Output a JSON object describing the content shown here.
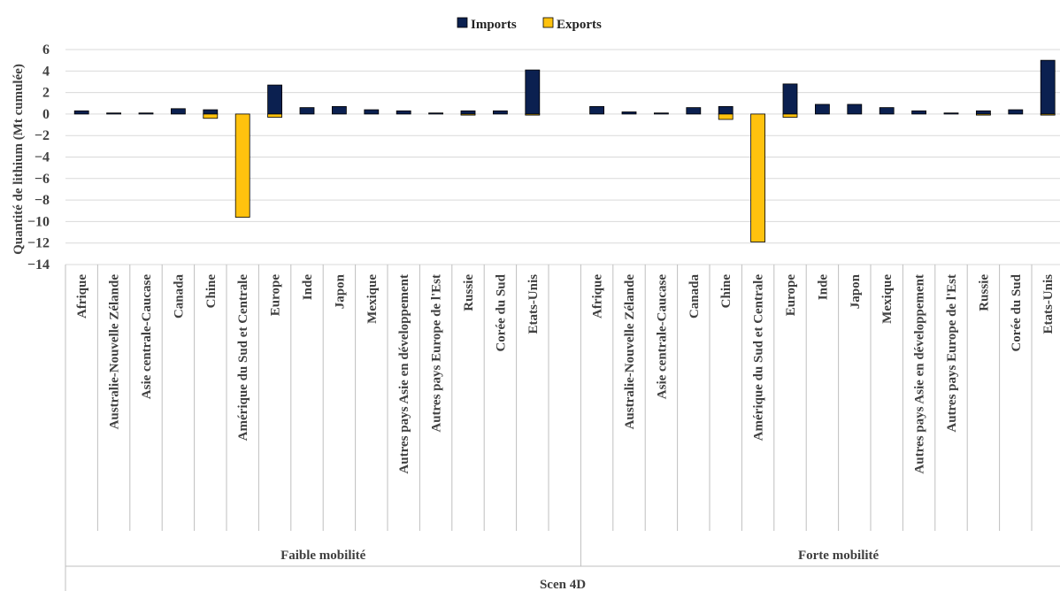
{
  "chart_data": {
    "type": "bar",
    "stacked": true,
    "title": "",
    "ylabel": "Quantité de lithium (Mt cumulée)",
    "ylim": [
      -14,
      6
    ],
    "yticks": [
      6,
      4,
      2,
      0,
      -2,
      -4,
      -6,
      -8,
      -10,
      -12,
      -14
    ],
    "grid": true,
    "legend_position": "top",
    "categories": [
      "Afrique",
      "Australie-Nouvelle Zélande",
      "Asie centrale-Caucase",
      "Canada",
      "Chine",
      "Amérique du Sud et Centrale",
      "Europe",
      "Inde",
      "Japon",
      "Mexique",
      "Autres pays Asie en développement",
      "Autres pays Europe de l'Est",
      "Russie",
      "Corée du Sud",
      "Etats-Unis"
    ],
    "groups": [
      {
        "name": "Faible mobilité",
        "imports": [
          0.3,
          0.1,
          0.1,
          0.5,
          0.4,
          0.0,
          2.7,
          0.6,
          0.7,
          0.4,
          0.3,
          0.1,
          0.3,
          0.3,
          4.1
        ],
        "exports": [
          0.0,
          0.0,
          0.0,
          0.0,
          -0.4,
          -9.6,
          -0.3,
          0.0,
          0.0,
          0.0,
          0.0,
          0.0,
          -0.1,
          0.0,
          -0.1
        ]
      },
      {
        "name": "Forte mobilité",
        "imports": [
          0.7,
          0.2,
          0.1,
          0.6,
          0.7,
          0.0,
          2.8,
          0.9,
          0.9,
          0.6,
          0.3,
          0.1,
          0.3,
          0.4,
          5.0
        ],
        "exports": [
          0.0,
          0.0,
          0.0,
          0.0,
          -0.5,
          -11.9,
          -0.3,
          0.0,
          0.0,
          0.0,
          0.0,
          0.0,
          -0.1,
          0.0,
          -0.1
        ]
      }
    ],
    "outer_group": "Scen 4D",
    "series": [
      {
        "name": "Imports",
        "color": "#0b2050"
      },
      {
        "name": "Exports",
        "color": "#ffc20e"
      }
    ]
  }
}
